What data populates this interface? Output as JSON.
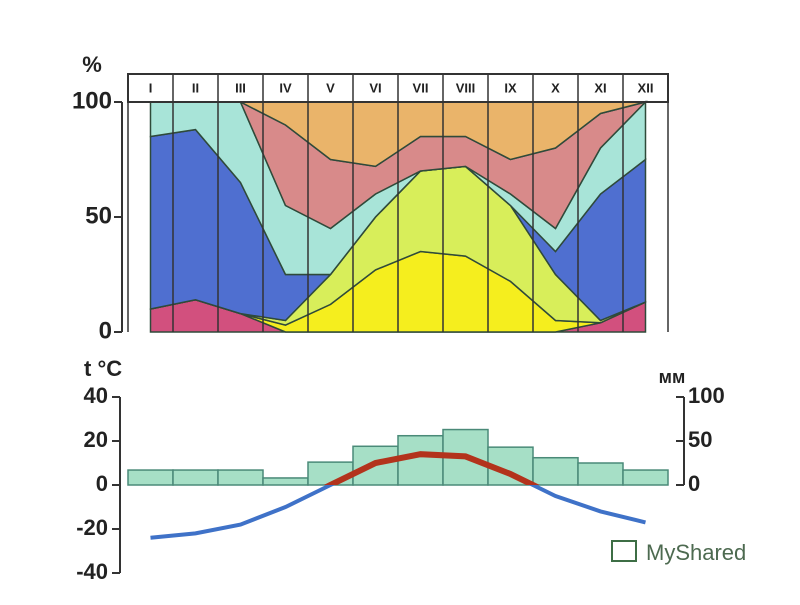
{
  "chart_data": [
    {
      "type": "stacked_area",
      "ylabel": "%",
      "categories": [
        "I",
        "II",
        "III",
        "IV",
        "V",
        "VI",
        "VII",
        "VIII",
        "IX",
        "X",
        "XI",
        "XII"
      ],
      "ylim": [
        0,
        100
      ],
      "yticks": [
        0,
        50,
        100
      ],
      "series": [
        {
          "color": "#d2507e",
          "values": [
            10,
            14,
            8,
            0,
            0,
            0,
            0,
            0,
            0,
            0,
            4,
            13
          ]
        },
        {
          "color": "#f5ee1e",
          "values": [
            0,
            0,
            0,
            3,
            12,
            27,
            35,
            33,
            22,
            5,
            0,
            0
          ]
        },
        {
          "color": "#d8ee5a",
          "values": [
            0,
            0,
            0,
            2,
            13,
            23,
            35,
            39,
            33,
            20,
            1,
            0
          ]
        },
        {
          "color": "#4f6fd0",
          "values": [
            75,
            74,
            57,
            20,
            0,
            0,
            0,
            0,
            0,
            10,
            55,
            62
          ]
        },
        {
          "color": "#a8e4d8",
          "values": [
            15,
            12,
            35,
            30,
            20,
            10,
            0,
            0,
            5,
            10,
            20,
            25
          ]
        },
        {
          "color": "#d88a8a",
          "values": [
            0,
            0,
            0,
            35,
            30,
            12,
            15,
            13,
            15,
            35,
            15,
            0
          ]
        },
        {
          "color": "#eab46a",
          "values": [
            0,
            0,
            0,
            10,
            25,
            28,
            15,
            15,
            25,
            20,
            5,
            0
          ]
        }
      ]
    },
    {
      "type": "climate",
      "ylabel": "t °C",
      "y2label": "мм",
      "ylim": [
        -40,
        40
      ],
      "yticks": [
        -40,
        -20,
        0,
        20,
        40
      ],
      "y2lim": [
        0,
        100
      ],
      "y2ticks": [
        0,
        50,
        100
      ],
      "series": [
        {
          "type": "bar",
          "axis": "y2",
          "color": "#a6dfc6",
          "values": [
            17,
            17,
            17,
            8,
            26,
            44,
            56,
            63,
            43,
            31,
            25,
            17
          ]
        },
        {
          "type": "line",
          "color": "#3f72c8",
          "positive_color": "#b3331c",
          "values": [
            -24,
            -22,
            -18,
            -10,
            0,
            10,
            14,
            13,
            5,
            -5,
            -12,
            -17
          ]
        }
      ]
    }
  ],
  "watermark": "MyShared"
}
